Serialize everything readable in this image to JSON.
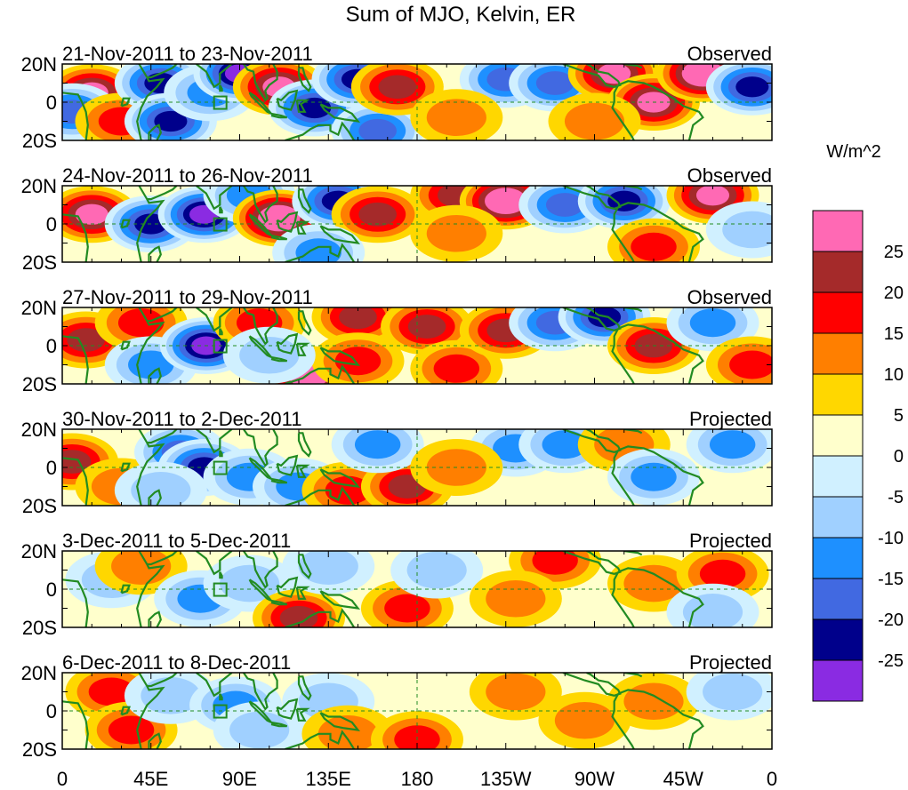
{
  "title": "Sum of MJO, Kelvin, ER",
  "colorbar": {
    "units": "W/m^2",
    "bins": [
      {
        "color": "#ff69b4",
        "label": "25"
      },
      {
        "color": "#a52a2a",
        "label": "20"
      },
      {
        "color": "#ff0000",
        "label": "15"
      },
      {
        "color": "#ff7f00",
        "label": "10"
      },
      {
        "color": "#ffd700",
        "label": "5"
      },
      {
        "color": "#ffffcc",
        "label": "0"
      },
      {
        "color": "#d0f0ff",
        "label": "-5"
      },
      {
        "color": "#a0d0ff",
        "label": "-10"
      },
      {
        "color": "#1e90ff",
        "label": "-15"
      },
      {
        "color": "#4169e1",
        "label": "-20"
      },
      {
        "color": "#00008b",
        "label": "-25"
      },
      {
        "color": "#8a2be2",
        "label": null
      }
    ]
  },
  "lat_labels": [
    "20N",
    "0",
    "20S"
  ],
  "lon_labels": [
    "0",
    "45E",
    "90E",
    "135E",
    "180",
    "135W",
    "90W",
    "45W",
    "0"
  ],
  "panels": [
    {
      "dates": "21-Nov-2011 to 23-Nov-2011",
      "status": "Observed"
    },
    {
      "dates": "24-Nov-2011 to 26-Nov-2011",
      "status": "Observed"
    },
    {
      "dates": "27-Nov-2011 to 29-Nov-2011",
      "status": "Observed"
    },
    {
      "dates": "30-Nov-2011 to 2-Dec-2011",
      "status": "Projected"
    },
    {
      "dates": "3-Dec-2011 to 5-Dec-2011",
      "status": "Projected"
    },
    {
      "dates": "6-Dec-2011 to 8-Dec-2011",
      "status": "Projected"
    }
  ],
  "anomaly_blobs": [
    [
      {
        "lon": 15,
        "lat": 5,
        "value": 22
      },
      {
        "lon": 5,
        "lat": -5,
        "value": -18
      },
      {
        "lon": 30,
        "lat": -10,
        "value": 12
      },
      {
        "lon": 50,
        "lat": 10,
        "value": -20
      },
      {
        "lon": 55,
        "lat": -10,
        "value": -22
      },
      {
        "lon": 75,
        "lat": 5,
        "value": -10
      },
      {
        "lon": 90,
        "lat": 15,
        "value": -25
      },
      {
        "lon": 110,
        "lat": 8,
        "value": 20
      },
      {
        "lon": 128,
        "lat": -3,
        "value": -22
      },
      {
        "lon": 150,
        "lat": 12,
        "value": -20
      },
      {
        "lon": 160,
        "lat": -15,
        "value": -18
      },
      {
        "lon": 170,
        "lat": 8,
        "value": 15
      },
      {
        "lon": 225,
        "lat": 12,
        "value": -15
      },
      {
        "lon": 250,
        "lat": 10,
        "value": -18
      },
      {
        "lon": 280,
        "lat": 15,
        "value": 20
      },
      {
        "lon": 300,
        "lat": 0,
        "value": 22
      },
      {
        "lon": 325,
        "lat": 15,
        "value": 25
      },
      {
        "lon": 350,
        "lat": 8,
        "value": -20
      },
      {
        "lon": 200,
        "lat": -8,
        "value": 8
      },
      {
        "lon": 270,
        "lat": -10,
        "value": 8
      }
    ],
    [
      {
        "lon": 15,
        "lat": 5,
        "value": 20
      },
      {
        "lon": 45,
        "lat": 0,
        "value": -22
      },
      {
        "lon": 72,
        "lat": 5,
        "value": -28
      },
      {
        "lon": 95,
        "lat": 15,
        "value": -12
      },
      {
        "lon": 110,
        "lat": 3,
        "value": 26
      },
      {
        "lon": 140,
        "lat": 12,
        "value": -20
      },
      {
        "lon": 160,
        "lat": 5,
        "value": 18
      },
      {
        "lon": 200,
        "lat": 15,
        "value": 15
      },
      {
        "lon": 225,
        "lat": 12,
        "value": 25
      },
      {
        "lon": 255,
        "lat": 10,
        "value": -15
      },
      {
        "lon": 285,
        "lat": 12,
        "value": -22
      },
      {
        "lon": 330,
        "lat": 15,
        "value": 20
      },
      {
        "lon": 300,
        "lat": -12,
        "value": 10
      },
      {
        "lon": 130,
        "lat": -15,
        "value": -12
      },
      {
        "lon": 200,
        "lat": -5,
        "value": 5
      },
      {
        "lon": 350,
        "lat": -3,
        "value": -8
      }
    ],
    [
      {
        "lon": 12,
        "lat": 3,
        "value": 18
      },
      {
        "lon": 40,
        "lat": 12,
        "value": 12
      },
      {
        "lon": 45,
        "lat": -10,
        "value": -10
      },
      {
        "lon": 73,
        "lat": 0,
        "value": -28
      },
      {
        "lon": 100,
        "lat": 12,
        "value": 10
      },
      {
        "lon": 125,
        "lat": -15,
        "value": 25
      },
      {
        "lon": 150,
        "lat": 15,
        "value": 15
      },
      {
        "lon": 150,
        "lat": -8,
        "value": 12
      },
      {
        "lon": 185,
        "lat": 10,
        "value": 15
      },
      {
        "lon": 200,
        "lat": -12,
        "value": 10
      },
      {
        "lon": 225,
        "lat": 8,
        "value": 18
      },
      {
        "lon": 250,
        "lat": 12,
        "value": -18
      },
      {
        "lon": 275,
        "lat": 15,
        "value": -22
      },
      {
        "lon": 300,
        "lat": 0,
        "value": 15
      },
      {
        "lon": 330,
        "lat": 12,
        "value": -12
      },
      {
        "lon": 350,
        "lat": -10,
        "value": 10
      },
      {
        "lon": 105,
        "lat": -5,
        "value": -8
      }
    ],
    [
      {
        "lon": 5,
        "lat": 3,
        "value": 15
      },
      {
        "lon": 30,
        "lat": -10,
        "value": 5
      },
      {
        "lon": 60,
        "lat": 8,
        "value": -15
      },
      {
        "lon": 72,
        "lat": 0,
        "value": -20
      },
      {
        "lon": 95,
        "lat": -5,
        "value": -12
      },
      {
        "lon": 120,
        "lat": -10,
        "value": -12
      },
      {
        "lon": 145,
        "lat": -12,
        "value": 12
      },
      {
        "lon": 175,
        "lat": -10,
        "value": 15
      },
      {
        "lon": 160,
        "lat": 12,
        "value": -10
      },
      {
        "lon": 230,
        "lat": 10,
        "value": -10
      },
      {
        "lon": 255,
        "lat": 12,
        "value": -12
      },
      {
        "lon": 285,
        "lat": 12,
        "value": 8
      },
      {
        "lon": 300,
        "lat": -5,
        "value": -10
      },
      {
        "lon": 340,
        "lat": 12,
        "value": -10
      },
      {
        "lon": 200,
        "lat": 0,
        "value": 5
      },
      {
        "lon": 50,
        "lat": -12,
        "value": -8
      }
    ],
    [
      {
        "lon": 25,
        "lat": 5,
        "value": -5
      },
      {
        "lon": 40,
        "lat": 12,
        "value": 5
      },
      {
        "lon": 70,
        "lat": -5,
        "value": -12
      },
      {
        "lon": 95,
        "lat": 3,
        "value": -8
      },
      {
        "lon": 120,
        "lat": -15,
        "value": 15
      },
      {
        "lon": 135,
        "lat": 12,
        "value": -8
      },
      {
        "lon": 175,
        "lat": -10,
        "value": 10
      },
      {
        "lon": 190,
        "lat": 10,
        "value": -5
      },
      {
        "lon": 250,
        "lat": 15,
        "value": 10
      },
      {
        "lon": 300,
        "lat": 3,
        "value": 5
      },
      {
        "lon": 335,
        "lat": 8,
        "value": 12
      },
      {
        "lon": 330,
        "lat": -12,
        "value": -5
      },
      {
        "lon": 230,
        "lat": -5,
        "value": 5
      }
    ],
    [
      {
        "lon": 25,
        "lat": 10,
        "value": 10
      },
      {
        "lon": 35,
        "lat": -10,
        "value": 12
      },
      {
        "lon": 55,
        "lat": 8,
        "value": -8
      },
      {
        "lon": 88,
        "lat": 3,
        "value": -10
      },
      {
        "lon": 100,
        "lat": -10,
        "value": -5
      },
      {
        "lon": 135,
        "lat": 5,
        "value": -5
      },
      {
        "lon": 145,
        "lat": -12,
        "value": 8
      },
      {
        "lon": 180,
        "lat": -15,
        "value": 10
      },
      {
        "lon": 230,
        "lat": 10,
        "value": 5
      },
      {
        "lon": 265,
        "lat": -5,
        "value": 5
      },
      {
        "lon": 300,
        "lat": 5,
        "value": 5
      },
      {
        "lon": 340,
        "lat": 10,
        "value": -5
      }
    ]
  ]
}
